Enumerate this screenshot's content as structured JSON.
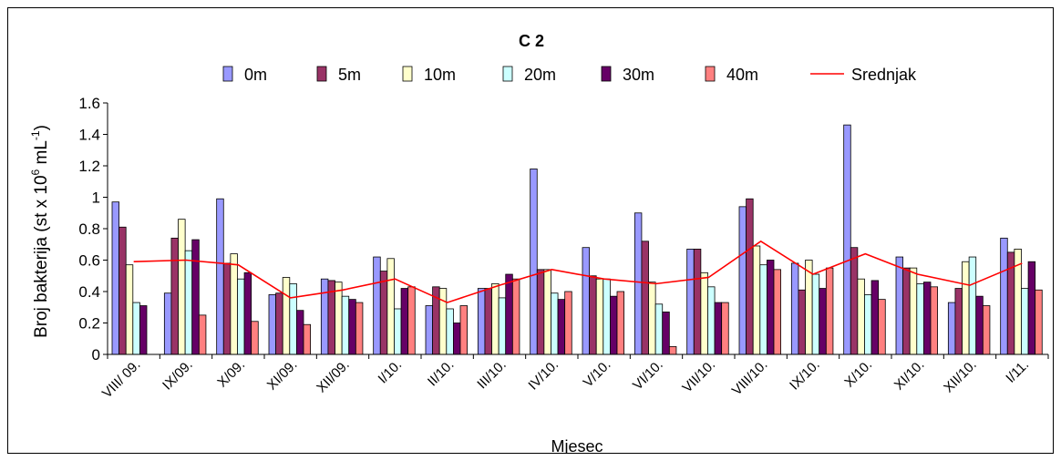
{
  "chart_data": {
    "type": "bar",
    "title": "C 2",
    "xlabel": "Mjesec",
    "ylabel_main": "Broj bakterija (st x 10",
    "ylabel_sup1": "6",
    "ylabel_mid": " mL",
    "ylabel_sup2": "-1",
    "ylabel_end": ")",
    "ylim": [
      0,
      1.6
    ],
    "yticks": [
      "0",
      "0.2",
      "0.4",
      "0.6",
      "0.8",
      "1",
      "1.2",
      "1.4",
      "1.6"
    ],
    "grid": false,
    "legend_position": "top",
    "categories": [
      "VIII/ 09.",
      "IX/09.",
      "X/09.",
      "XI/09.",
      "XII/09.",
      "I/10.",
      "II/10.",
      "III/10.",
      "IV/10.",
      "V/10.",
      "VI/10.",
      "VII/10.",
      "VIII/10.",
      "IX/10.",
      "X/10.",
      "XI/10.",
      "XII/10.",
      "I/11."
    ],
    "series": [
      {
        "name": "0m",
        "color": "#9999FF",
        "values": [
          0.97,
          0.39,
          0.99,
          0.38,
          0.48,
          0.62,
          0.31,
          0.42,
          1.18,
          0.68,
          0.9,
          0.67,
          0.94,
          0.58,
          1.46,
          0.62,
          0.33,
          0.74
        ]
      },
      {
        "name": "5m",
        "color": "#993366",
        "values": [
          0.81,
          0.74,
          0.58,
          0.39,
          0.47,
          0.53,
          0.43,
          0.42,
          0.54,
          0.5,
          0.72,
          0.67,
          0.99,
          0.41,
          0.68,
          0.55,
          0.42,
          0.65
        ]
      },
      {
        "name": "10m",
        "color": "#FFFFCC",
        "values": [
          0.57,
          0.86,
          0.64,
          0.49,
          0.46,
          0.61,
          0.42,
          0.45,
          0.54,
          0.48,
          0.46,
          0.52,
          0.69,
          0.6,
          0.48,
          0.55,
          0.59,
          0.67
        ]
      },
      {
        "name": "20m",
        "color": "#CCFFFF",
        "values": [
          0.33,
          0.66,
          0.48,
          0.45,
          0.37,
          0.29,
          0.29,
          0.36,
          0.39,
          0.48,
          0.32,
          0.43,
          0.57,
          0.51,
          0.38,
          0.45,
          0.62,
          0.42
        ]
      },
      {
        "name": "30m",
        "color": "#660066",
        "values": [
          0.31,
          0.73,
          0.52,
          0.28,
          0.35,
          0.42,
          0.2,
          0.51,
          0.35,
          0.37,
          0.27,
          0.33,
          0.6,
          0.42,
          0.47,
          0.46,
          0.37,
          0.59
        ]
      },
      {
        "name": "40m",
        "color": "#FF8080",
        "values": [
          null,
          0.25,
          0.21,
          0.19,
          0.33,
          0.43,
          0.31,
          0.48,
          0.4,
          0.4,
          0.05,
          0.33,
          0.54,
          0.55,
          0.35,
          0.43,
          0.31,
          0.41
        ]
      }
    ],
    "line_series": {
      "name": "Srednjak",
      "color": "#FF0000",
      "values": [
        0.59,
        0.6,
        0.57,
        0.36,
        0.41,
        0.48,
        0.33,
        0.44,
        0.54,
        0.48,
        0.45,
        0.49,
        0.72,
        0.51,
        0.64,
        0.51,
        0.44,
        0.58
      ]
    }
  }
}
